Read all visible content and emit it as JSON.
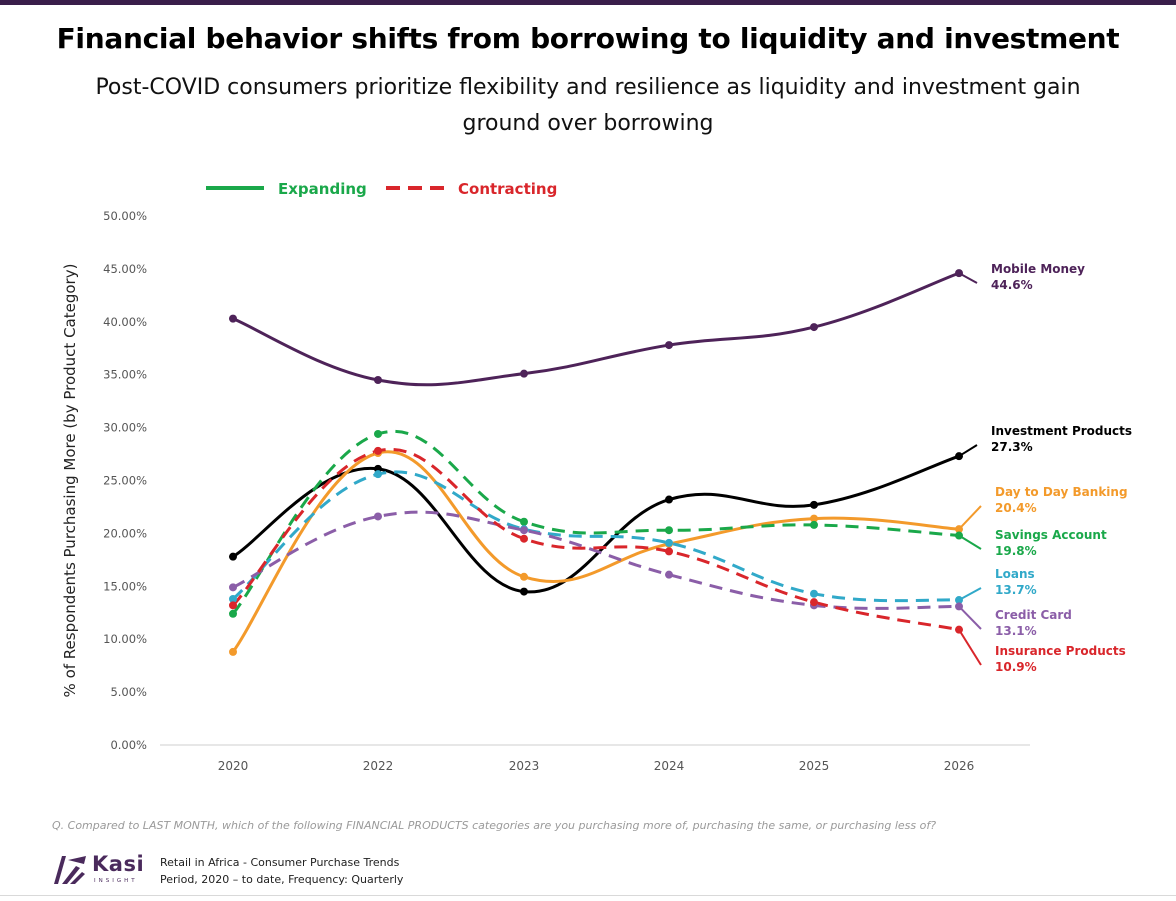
{
  "header": {
    "title": "Financial behavior shifts from borrowing to liquidity and investment",
    "subtitle": "Post-COVID consumers prioritize flexibility and resilience as liquidity and investment gain ground over borrowing"
  },
  "footer": {
    "question": "Q. Compared to LAST MONTH, which of the following FINANCIAL PRODUCTS categories are you purchasing more of, purchasing the same, or purchasing less of?",
    "brand_name": "Kasi",
    "brand_sub": "INSIGHT",
    "source_line1": "Retail in Africa - Consumer Purchase Trends",
    "source_line2": "Period, 2020 – to date, Frequency: Quarterly"
  },
  "colors": {
    "brand": "#4a2a5c",
    "expanding": "#1aa84a",
    "contracting": "#d9262b"
  },
  "chart_data": {
    "type": "line",
    "title": "",
    "xlabel": "",
    "ylabel": "% of Respondents Purchasing More (by Product Category)",
    "x": [
      "2020",
      "2022",
      "2023",
      "2024",
      "2025",
      "2026"
    ],
    "ylim": [
      0,
      50
    ],
    "yticks": [
      "0.00%",
      "5.00%",
      "10.00%",
      "15.00%",
      "20.00%",
      "25.00%",
      "30.00%",
      "35.00%",
      "40.00%",
      "45.00%",
      "50.00%"
    ],
    "grid": false,
    "legend": {
      "position": "top-left",
      "items": [
        {
          "label": "Expanding",
          "color": "#1aa84a",
          "style": "solid"
        },
        {
          "label": "Contracting",
          "color": "#d9262b",
          "style": "dashed"
        }
      ]
    },
    "series": [
      {
        "name": "Mobile Money",
        "end_label": "44.6%",
        "color": "#4e2359",
        "dashed": false,
        "values": [
          40.3,
          34.5,
          35.1,
          37.8,
          39.5,
          44.6
        ]
      },
      {
        "name": "Investment Products",
        "end_label": "27.3%",
        "color": "#000000",
        "dashed": false,
        "values": [
          17.8,
          26.1,
          14.5,
          23.2,
          22.7,
          27.3
        ]
      },
      {
        "name": "Day to Day Banking",
        "end_label": "20.4%",
        "color": "#f39a2b",
        "dashed": false,
        "values": [
          8.8,
          27.6,
          15.9,
          19.0,
          21.4,
          20.4
        ]
      },
      {
        "name": "Savings Account",
        "end_label": "19.8%",
        "color": "#1aa84a",
        "dashed": true,
        "values": [
          12.4,
          29.4,
          21.1,
          20.3,
          20.8,
          19.8
        ]
      },
      {
        "name": "Loans",
        "end_label": "13.7%",
        "color": "#31a9c9",
        "dashed": true,
        "values": [
          13.8,
          25.6,
          20.4,
          19.1,
          14.3,
          13.7
        ]
      },
      {
        "name": "Credit Card",
        "end_label": "13.1%",
        "color": "#8b5ea8",
        "dashed": true,
        "values": [
          14.9,
          21.6,
          20.3,
          16.1,
          13.2,
          13.1
        ]
      },
      {
        "name": "Insurance Products",
        "end_label": "10.9%",
        "color": "#d9262b",
        "dashed": true,
        "values": [
          13.2,
          27.8,
          19.5,
          18.3,
          13.5,
          10.9
        ]
      }
    ]
  }
}
